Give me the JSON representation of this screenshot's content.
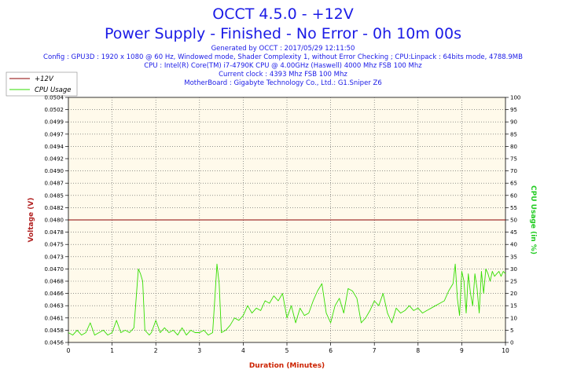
{
  "header": {
    "title": "OCCT 4.5.0 - +12V",
    "subtitle": "Power Supply - Finished - No Error - 0h 10m 00s",
    "info_lines": [
      "Generated by OCCT : 2017/05/29 12:11:50",
      "Config : GPU3D : 1920 x 1080 @ 60 Hz, Windowed mode, Shader Complexity 1, without Error Checking ; CPU:Linpack : 64bits mode, 4788.9MB",
      "CPU : Intel(R) Core(TM) i7-4790K CPU @ 4.00GHz (Haswell) 4000 Mhz FSB 100 Mhz",
      "Current clock : 4393 Mhz FSB 100 Mhz",
      "MotherBoard : Gigabyte Technology Co., Ltd.: G1.Sniper Z6"
    ]
  },
  "colors": {
    "voltage": "#8b0000",
    "cpu_usage": "#33dd00",
    "plot_bg": "#fffaeb",
    "axis_left_label": "#b22222",
    "axis_right_label": "#22cc22",
    "axis_x_label": "#cc2200"
  },
  "chart_data": {
    "type": "line",
    "xlabel": "Duration (Minutes)",
    "ylabel": "Voltage (V)",
    "y2label": "CPU Usage (in %)",
    "xlim": [
      0,
      10
    ],
    "ylim": [
      0.0456,
      0.0504
    ],
    "y2lim": [
      0,
      100
    ],
    "x_ticks": [
      "0",
      "1",
      "2",
      "3",
      "4",
      "5",
      "6",
      "7",
      "8",
      "9",
      "10"
    ],
    "y_ticks": [
      "0.0456",
      "0.0458",
      "0.0461",
      "0.0463",
      "0.0466",
      "0.0468",
      "0.0470",
      "0.0473",
      "0.0475",
      "0.0478",
      "0.0480",
      "0.0482",
      "0.0485",
      "0.0487",
      "0.0490",
      "0.0492",
      "0.0494",
      "0.0497",
      "0.0499",
      "0.0502",
      "0.0504"
    ],
    "y2_ticks": [
      "0",
      "5",
      "10",
      "15",
      "20",
      "25",
      "30",
      "35",
      "40",
      "45",
      "50",
      "55",
      "60",
      "65",
      "70",
      "75",
      "80",
      "85",
      "90",
      "95",
      "100"
    ],
    "grid": true,
    "legend_position": "top-left",
    "series": [
      {
        "name": "+12V",
        "axis": "left",
        "x": [
          0,
          10
        ],
        "values": [
          0.048,
          0.048
        ]
      },
      {
        "name": "CPU Usage",
        "axis": "right",
        "x": [
          0,
          0.1,
          0.2,
          0.3,
          0.4,
          0.5,
          0.6,
          0.7,
          0.8,
          0.9,
          1.0,
          1.1,
          1.2,
          1.3,
          1.4,
          1.5,
          1.55,
          1.6,
          1.65,
          1.7,
          1.75,
          1.8,
          1.85,
          1.9,
          2.0,
          2.1,
          2.2,
          2.3,
          2.4,
          2.5,
          2.6,
          2.7,
          2.8,
          2.9,
          3.0,
          3.1,
          3.2,
          3.3,
          3.35,
          3.4,
          3.45,
          3.5,
          3.6,
          3.7,
          3.8,
          3.9,
          4.0,
          4.1,
          4.2,
          4.3,
          4.4,
          4.5,
          4.6,
          4.7,
          4.8,
          4.9,
          5.0,
          5.1,
          5.2,
          5.3,
          5.4,
          5.5,
          5.6,
          5.7,
          5.8,
          5.9,
          6.0,
          6.1,
          6.2,
          6.3,
          6.4,
          6.5,
          6.6,
          6.7,
          6.8,
          6.9,
          7.0,
          7.1,
          7.2,
          7.3,
          7.4,
          7.5,
          7.6,
          7.7,
          7.8,
          7.9,
          8.0,
          8.1,
          8.2,
          8.3,
          8.4,
          8.5,
          8.6,
          8.7,
          8.8,
          8.85,
          8.9,
          8.95,
          9.0,
          9.05,
          9.1,
          9.15,
          9.2,
          9.25,
          9.3,
          9.35,
          9.4,
          9.45,
          9.5,
          9.55,
          9.6,
          9.65,
          9.7,
          9.75,
          9.8,
          9.85,
          9.9,
          9.95,
          10.0
        ],
        "values": [
          4,
          3,
          5,
          3,
          4,
          8,
          3,
          4,
          5,
          3,
          4,
          9,
          4,
          5,
          4,
          6,
          18,
          30,
          28,
          25,
          5,
          4,
          3,
          4,
          9,
          4,
          6,
          4,
          5,
          3,
          6,
          3,
          5,
          4,
          4,
          5,
          3,
          4,
          18,
          32,
          24,
          4,
          5,
          7,
          10,
          9,
          11,
          15,
          12,
          14,
          13,
          17,
          16,
          19,
          17,
          20,
          10,
          15,
          8,
          14,
          11,
          12,
          17,
          21,
          24,
          12,
          8,
          15,
          18,
          12,
          22,
          21,
          18,
          8,
          10,
          13,
          17,
          15,
          20,
          12,
          8,
          14,
          12,
          13,
          15,
          13,
          14,
          12,
          13,
          14,
          15,
          16,
          17,
          21,
          24,
          32,
          18,
          11,
          29,
          25,
          12,
          28,
          20,
          15,
          28,
          22,
          12,
          29,
          20,
          30,
          28,
          25,
          29,
          27,
          28,
          29,
          27,
          29,
          28
        ]
      }
    ]
  }
}
